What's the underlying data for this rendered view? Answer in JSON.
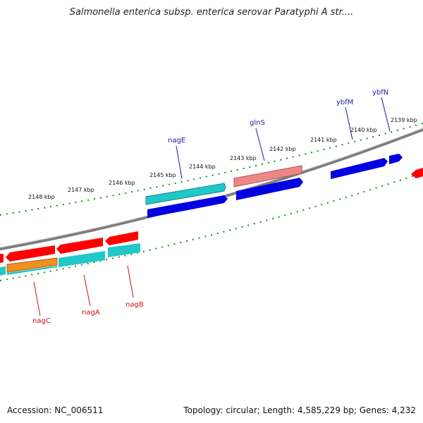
{
  "title": "Salmonella enterica subsp. enterica serovar Paratyphi A str....",
  "footer": {
    "accession": "Accession: NC_006511",
    "summary": "Topology: circular; Length: 4,585,229 bp; Genes: 4,232"
  },
  "scale_labels": [
    "2148 kbp",
    "2147 kbp",
    "2146 kbp",
    "2145 kbp",
    "2144 kbp",
    "2143 kbp",
    "2142 kbp",
    "2141 kbp",
    "2140 kbp",
    "2139 kbp"
  ],
  "gene_labels": {
    "top": [
      "nagE",
      "glnS",
      "ybfM",
      "ybfN"
    ],
    "bottom": [
      "nagC",
      "nagA",
      "nagB"
    ]
  },
  "colors": {
    "forward_cds": "#0000e0",
    "reverse_cds": "#ff0000",
    "cyan": "#20c8c8",
    "pink": "#ee8888",
    "orange": "#f09020",
    "backbone": "#888888",
    "ticks": "#228b22",
    "label_top": "#1a1aa0",
    "label_bottom": "#cc1111"
  }
}
